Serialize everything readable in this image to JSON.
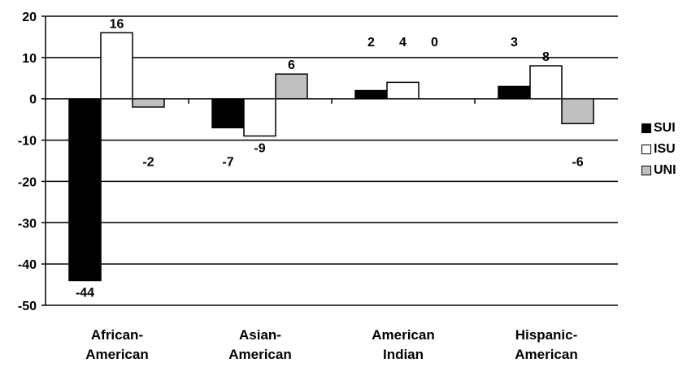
{
  "chart_data": {
    "type": "bar",
    "categories": [
      [
        "African-",
        "American"
      ],
      [
        "Asian-",
        "American"
      ],
      [
        "American",
        "Indian"
      ],
      [
        "Hispanic-",
        "American"
      ]
    ],
    "series": [
      {
        "name": "SUI",
        "color": "#000000",
        "values": [
          -44,
          -7,
          2,
          3
        ]
      },
      {
        "name": "ISU",
        "color": "#ffffff",
        "values": [
          16,
          -9,
          4,
          8
        ]
      },
      {
        "name": "UNI",
        "color": "#c0c0c0",
        "values": [
          -2,
          6,
          0,
          -6
        ]
      }
    ],
    "ylim": [
      -50,
      20
    ],
    "yticks": [
      -50,
      -40,
      -30,
      -20,
      -10,
      0,
      10,
      20
    ],
    "grid": true,
    "legend_position": "right"
  }
}
